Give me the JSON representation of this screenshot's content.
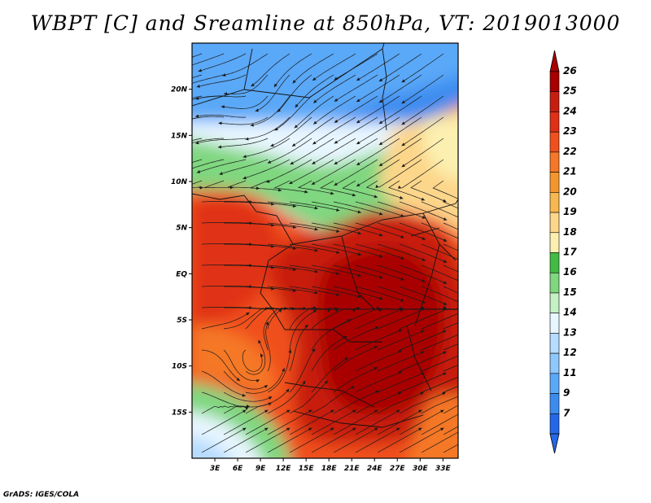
{
  "title": "WBPT [C] and Sreamline at 850hPa, VT: 2019013000",
  "credit": "GrADS: IGES/COLA",
  "map": {
    "lon_range": [
      0,
      35
    ],
    "lat_range": [
      -20,
      25
    ],
    "lat_ticks": [
      {
        "value": 20,
        "label": "20N"
      },
      {
        "value": 15,
        "label": "15N"
      },
      {
        "value": 10,
        "label": "10N"
      },
      {
        "value": 5,
        "label": "5N"
      },
      {
        "value": 0,
        "label": "EQ"
      },
      {
        "value": -5,
        "label": "5S"
      },
      {
        "value": -10,
        "label": "10S"
      },
      {
        "value": -15,
        "label": "15S"
      }
    ],
    "lon_ticks": [
      {
        "value": 3,
        "label": "3E"
      },
      {
        "value": 6,
        "label": "6E"
      },
      {
        "value": 9,
        "label": "9E"
      },
      {
        "value": 12,
        "label": "12E"
      },
      {
        "value": 15,
        "label": "15E"
      },
      {
        "value": 18,
        "label": "18E"
      },
      {
        "value": 21,
        "label": "21E"
      },
      {
        "value": 24,
        "label": "24E"
      },
      {
        "value": 27,
        "label": "27E"
      },
      {
        "value": 30,
        "label": "30E"
      },
      {
        "value": 33,
        "label": "33E"
      }
    ]
  },
  "colorbar": {
    "labels": [
      "26",
      "25",
      "24",
      "23",
      "22",
      "21",
      "20",
      "19",
      "18",
      "17",
      "16",
      "15",
      "14",
      "13",
      "12",
      "11",
      "9",
      "7"
    ],
    "colors": [
      "#a80000",
      "#c81e10",
      "#e03018",
      "#f0501e",
      "#f57828",
      "#f5962d",
      "#f8b850",
      "#fcd68a",
      "#fcf0b0",
      "#44bb44",
      "#7fd77f",
      "#c4f0c4",
      "#e8f6ff",
      "#b6dcff",
      "#8ec8ff",
      "#5aa8f8",
      "#3c8cf0",
      "#2468e8"
    ]
  }
}
